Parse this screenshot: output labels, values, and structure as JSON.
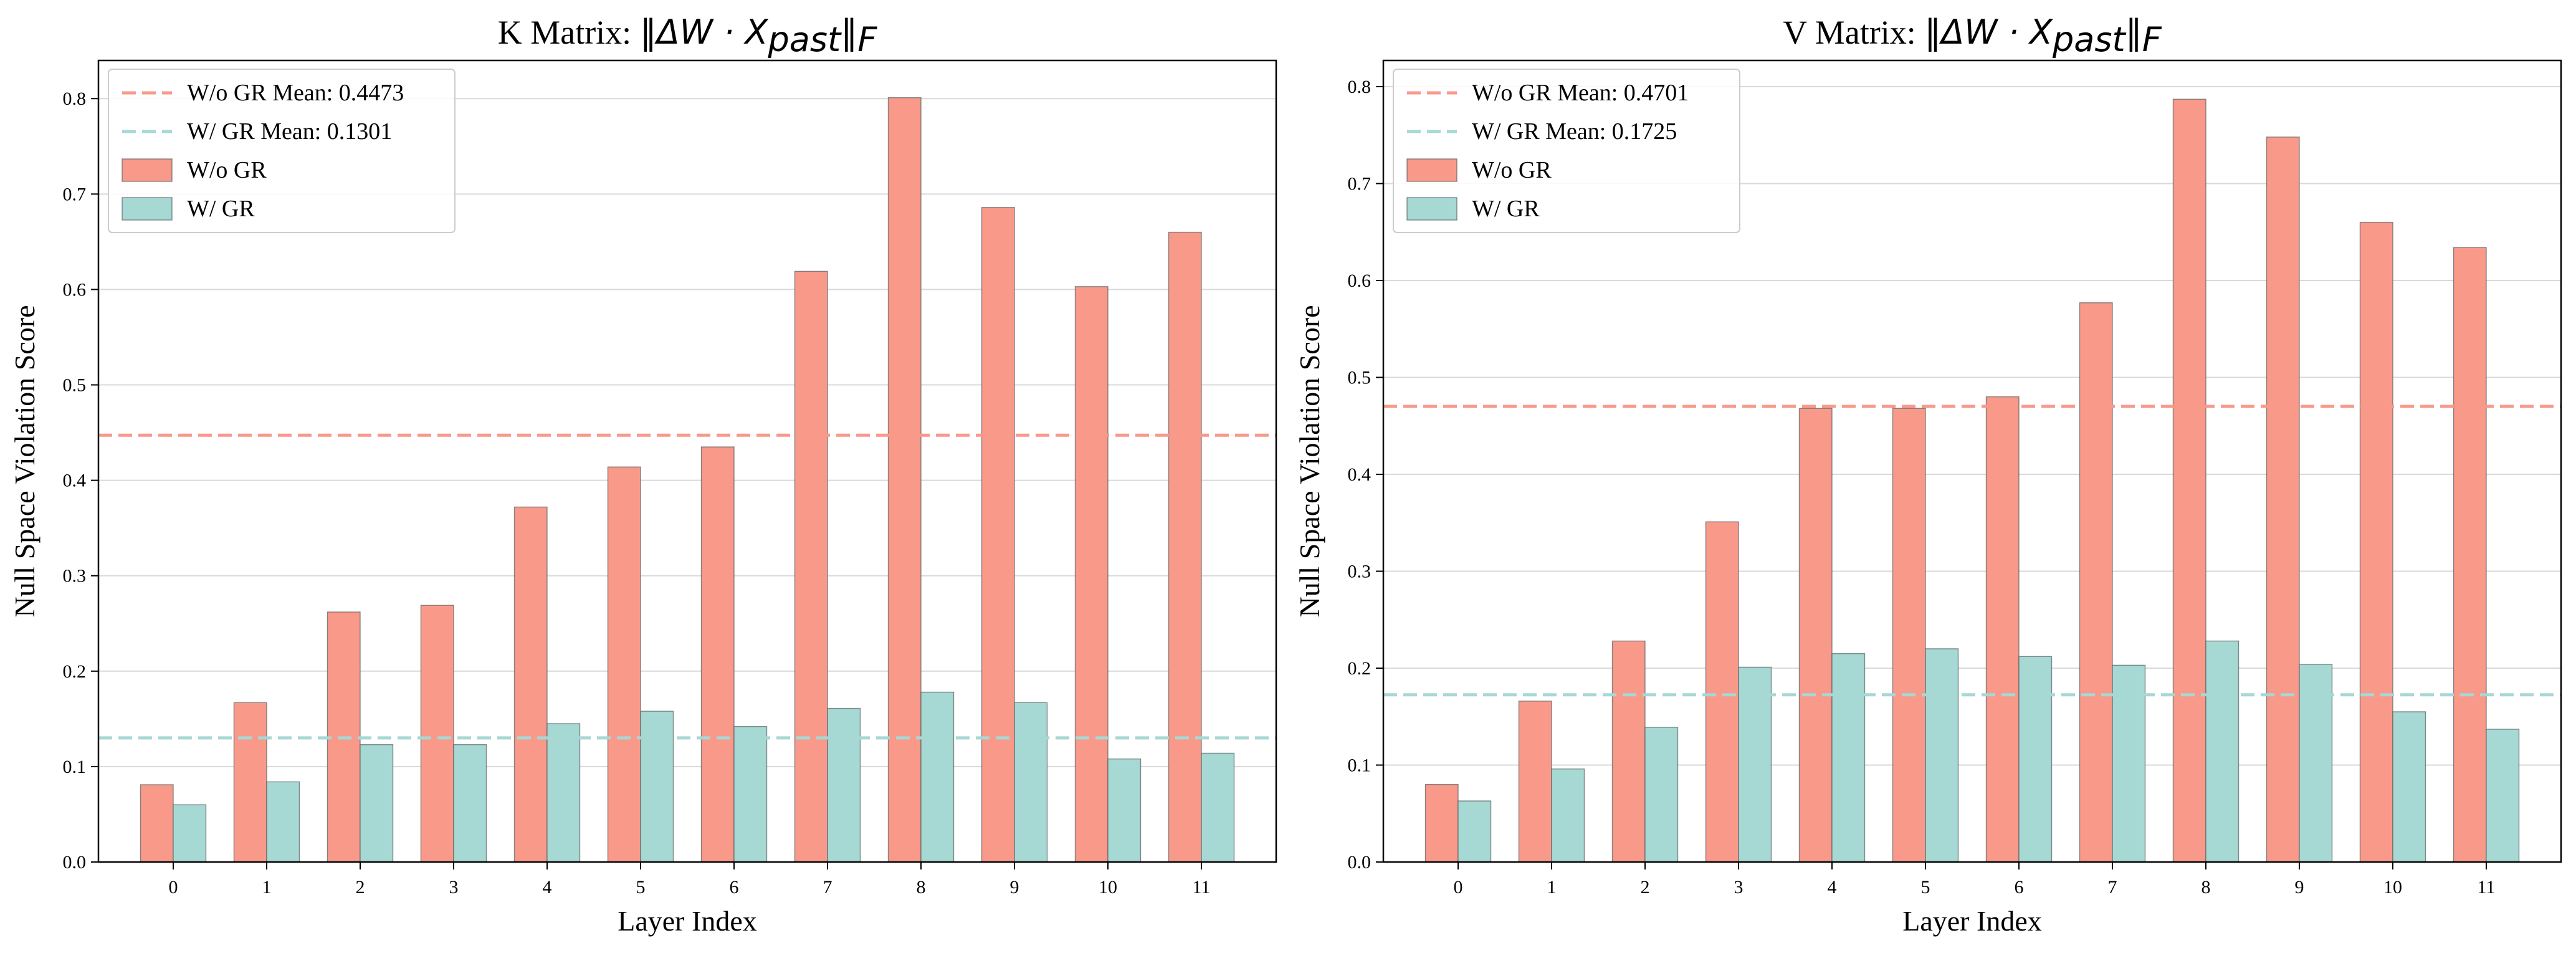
{
  "chart_data": [
    {
      "type": "bar",
      "title_prefix": "K Matrix: ",
      "title_math": "‖ΔW · X",
      "title_math_sub": "past",
      "title_math_close": "‖",
      "title_math_close_sub": "F",
      "xlabel": "Layer Index",
      "ylabel": "Null Space Violation Score",
      "categories": [
        "0",
        "1",
        "2",
        "3",
        "4",
        "5",
        "6",
        "7",
        "8",
        "9",
        "10",
        "11"
      ],
      "ylim": [
        0,
        0.84
      ],
      "yticks": [
        "0.0",
        "0.1",
        "0.2",
        "0.3",
        "0.4",
        "0.5",
        "0.6",
        "0.7",
        "0.8"
      ],
      "grid": "horizontal",
      "legend_position": "top-left",
      "series": [
        {
          "name": "W/o GR",
          "color": "#F9998A",
          "values": [
            0.081,
            0.167,
            0.262,
            0.269,
            0.372,
            0.414,
            0.435,
            0.619,
            0.801,
            0.686,
            0.603,
            0.66
          ]
        },
        {
          "name": "W/ GR",
          "color": "#A6D8D4",
          "values": [
            0.06,
            0.084,
            0.123,
            0.123,
            0.145,
            0.158,
            0.142,
            0.161,
            0.178,
            0.167,
            0.108,
            0.114
          ]
        }
      ],
      "mean_lines": [
        {
          "label": "W/o GR Mean: 0.4473",
          "value": 0.4473,
          "color": "#F9998A"
        },
        {
          "label": "W/ GR Mean: 0.1301",
          "value": 0.1301,
          "color": "#A6D8D4"
        }
      ]
    },
    {
      "type": "bar",
      "title_prefix": "V Matrix: ",
      "title_math": "‖ΔW · X",
      "title_math_sub": "past",
      "title_math_close": "‖",
      "title_math_close_sub": "F",
      "xlabel": "Layer Index",
      "ylabel": "Null Space Violation Score",
      "categories": [
        "0",
        "1",
        "2",
        "3",
        "4",
        "5",
        "6",
        "7",
        "8",
        "9",
        "10",
        "11"
      ],
      "ylim": [
        0,
        0.827
      ],
      "yticks": [
        "0.0",
        "0.1",
        "0.2",
        "0.3",
        "0.4",
        "0.5",
        "0.6",
        "0.7",
        "0.8"
      ],
      "grid": "horizontal",
      "legend_position": "top-left",
      "series": [
        {
          "name": "W/o GR",
          "color": "#F9998A",
          "values": [
            0.08,
            0.166,
            0.228,
            0.351,
            0.468,
            0.468,
            0.48,
            0.577,
            0.787,
            0.748,
            0.66,
            0.634
          ]
        },
        {
          "name": "W/ GR",
          "color": "#A6D8D4",
          "values": [
            0.063,
            0.096,
            0.139,
            0.201,
            0.215,
            0.22,
            0.212,
            0.203,
            0.228,
            0.204,
            0.155,
            0.137
          ]
        }
      ],
      "mean_lines": [
        {
          "label": "W/o GR Mean: 0.4701",
          "value": 0.4701,
          "color": "#F9998A"
        },
        {
          "label": "W/ GR Mean: 0.1725",
          "value": 0.1725,
          "color": "#A6D8D4"
        }
      ]
    }
  ]
}
